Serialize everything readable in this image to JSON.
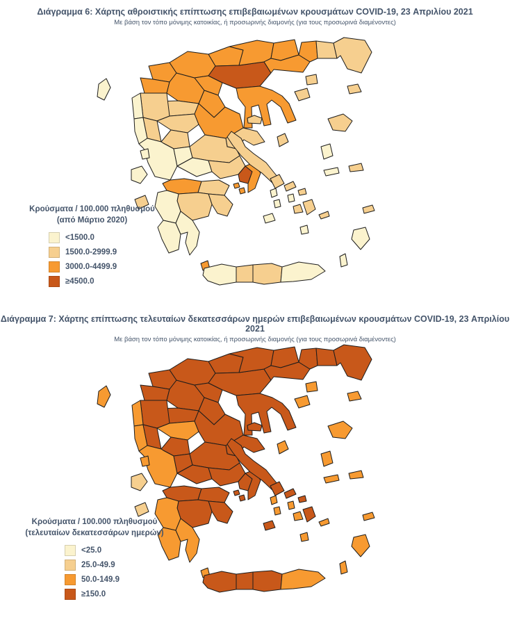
{
  "colors": {
    "text": "#44546A",
    "region_border": "#1c1c1c",
    "classes": [
      "#FBF3CE",
      "#F6CF8F",
      "#F79A31",
      "#C8581A"
    ]
  },
  "map6": {
    "title": "Διάγραμμα 6: Χάρτης αθροιστικής επίπτωσης επιβεβαιωμένων κρουσμάτων COVID-19, 23 Απριλίου 2021",
    "subtitle": "Με βάση τον τόπο μόνιμης κατοικίας, ή προσωρινής διαμονής (για τους προσωρινά διαμένοντες)",
    "legend": {
      "title_line1": "Κρούσματα / 100.000 πληθυσμού",
      "title_line2": "(από Μάρτιο 2020)",
      "items": [
        {
          "label": "<1500.0",
          "class": 0
        },
        {
          "label": "1500.0-2999.9",
          "class": 1
        },
        {
          "label": "3000.0-4499.9",
          "class": 2
        },
        {
          "label": "≥4500.0",
          "class": 3
        }
      ]
    },
    "region_classes": {
      "florina": 2,
      "kastoria": 2,
      "kozani": 2,
      "grevena": 1,
      "pella": 2,
      "imathia": 2,
      "pieria": 2,
      "kilkis": 2,
      "thessaloniki": 3,
      "serres": 2,
      "drama": 2,
      "kavala": 2,
      "xanthi": 2,
      "rhodope": 1,
      "evros": 1,
      "thasos": 1,
      "samothrace": 1,
      "chalkidiki": 2,
      "ioannina": 1,
      "thesprotia": 0,
      "preveza": 0,
      "arta": 1,
      "corfu": 0,
      "trikala": 1,
      "karditsa": 1,
      "larissa": 2,
      "magnesia": 1,
      "aetolia": 0,
      "evrytania": 0,
      "fthiotida": 1,
      "fokida": 0,
      "boeotia": 1,
      "attica_west": 3,
      "attica_east": 2,
      "euboea": 1,
      "achaia": 2,
      "corinthia": 1,
      "argolida": 1,
      "arcadia": 1,
      "ilia": 0,
      "messinia": 0,
      "laconia": 0,
      "lefkada": 0,
      "kefalonia": 0,
      "zakynthos": 1,
      "kythira": 2,
      "lemnos": 1,
      "lesbos": 1,
      "chios": 0,
      "samos": 1,
      "ikaria": 0,
      "sporades": 1,
      "skyros": 1,
      "andros": 1,
      "tinos": 1,
      "mykonos": 1,
      "syros": 0,
      "kea": 0,
      "kythnos": 0,
      "paros": 1,
      "naxos": 1,
      "milos": 0,
      "santorini": 0,
      "amorgos": 1,
      "kos": 1,
      "rhodes": 0,
      "karpathos": 0,
      "aegina": 2,
      "salamina": 2,
      "chania": 0,
      "rethymno": 1,
      "heraklion": 1,
      "lasithi": 0
    }
  },
  "map7": {
    "title": "Διάγραμμα 7: Χάρτης επίπτωσης τελευταίων δεκατεσσάρων ημερών επιβεβαιωμένων κρουσμάτων COVID-19, 23 Απριλίου 2021",
    "subtitle": "Με βάση τον τόπο μόνιμης κατοικίας, ή προσωρινής διαμονής (για τους προσωρινά διαμένοντες)",
    "legend": {
      "title_line1": "Κρούσματα / 100.000 πληθυσμού",
      "title_line2": "(τελευταίων δεκατεσσάρων ημερών)",
      "items": [
        {
          "label": "<25.0",
          "class": 0
        },
        {
          "label": "25.0-49.9",
          "class": 1
        },
        {
          "label": "50.0-149.9",
          "class": 2
        },
        {
          "label": "≥150.0",
          "class": 3
        }
      ]
    },
    "region_classes": {
      "florina": 3,
      "kastoria": 3,
      "kozani": 3,
      "grevena": 3,
      "pella": 3,
      "imathia": 3,
      "pieria": 3,
      "kilkis": 3,
      "thessaloniki": 3,
      "serres": 3,
      "drama": 3,
      "kavala": 3,
      "xanthi": 3,
      "rhodope": 3,
      "evros": 3,
      "thasos": 2,
      "samothrace": 2,
      "chalkidiki": 3,
      "ioannina": 3,
      "thesprotia": 2,
      "preveza": 2,
      "arta": 3,
      "corfu": 2,
      "trikala": 2,
      "karditsa": 3,
      "larissa": 3,
      "magnesia": 3,
      "aetolia": 2,
      "evrytania": 3,
      "fthiotida": 3,
      "fokida": 3,
      "boeotia": 3,
      "attica_west": 3,
      "attica_east": 3,
      "euboea": 3,
      "achaia": 3,
      "corinthia": 3,
      "argolida": 3,
      "arcadia": 3,
      "ilia": 2,
      "messinia": 2,
      "laconia": 2,
      "lefkada": 2,
      "kefalonia": 1,
      "zakynthos": 1,
      "kythira": 2,
      "lemnos": 2,
      "lesbos": 2,
      "chios": 2,
      "samos": 2,
      "ikaria": 2,
      "sporades": 3,
      "skyros": 2,
      "andros": 3,
      "tinos": 3,
      "mykonos": 3,
      "syros": 2,
      "kea": 2,
      "kythnos": 2,
      "paros": 2,
      "naxos": 3,
      "milos": 3,
      "santorini": 2,
      "amorgos": 2,
      "kos": 2,
      "rhodes": 2,
      "karpathos": 2,
      "aegina": 3,
      "salamina": 3,
      "chania": 3,
      "rethymno": 3,
      "heraklion": 3,
      "lasithi": 2
    }
  }
}
